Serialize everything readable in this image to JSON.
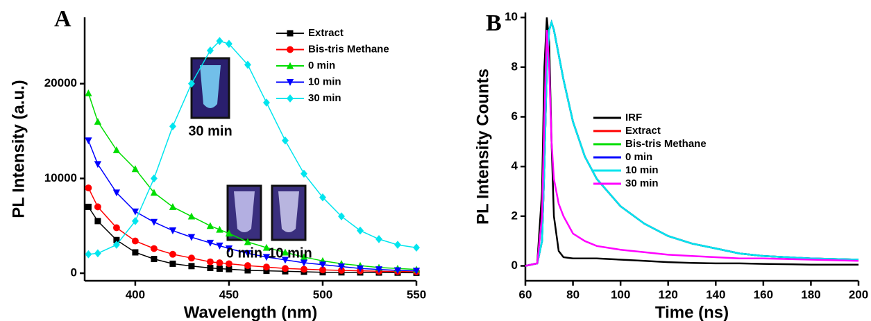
{
  "chart_data": [
    {
      "type": "line",
      "label": "A",
      "x_label": "Wavelength (nm)",
      "y_label": "PL Intensity (a.u.)",
      "x": [
        375,
        380,
        390,
        400,
        410,
        420,
        430,
        440,
        445,
        450,
        460,
        470,
        480,
        490,
        500,
        510,
        520,
        530,
        540,
        550
      ],
      "series": [
        {
          "name": "Extract",
          "color": "#000000",
          "marker": "square",
          "values": [
            7000,
            5500,
            3500,
            2200,
            1500,
            1000,
            750,
            550,
            480,
            420,
            300,
            250,
            200,
            150,
            100,
            90,
            80,
            70,
            60,
            50
          ]
        },
        {
          "name": "Bis-tris Methane",
          "color": "#ff0000",
          "marker": "circle",
          "values": [
            9000,
            7000,
            4800,
            3400,
            2600,
            2000,
            1600,
            1200,
            1100,
            1000,
            800,
            650,
            500,
            420,
            350,
            300,
            250,
            200,
            180,
            150
          ]
        },
        {
          "name": "0 min",
          "color": "#00dd00",
          "marker": "triangle",
          "values": [
            19000,
            16000,
            13000,
            11000,
            8500,
            7000,
            6000,
            5000,
            4600,
            4200,
            3300,
            2700,
            2200,
            1700,
            1300,
            1000,
            800,
            600,
            500,
            400
          ]
        },
        {
          "name": "10 min",
          "color": "#0000ff",
          "marker": "triangle-down",
          "values": [
            14000,
            11500,
            8500,
            6500,
            5400,
            4500,
            3800,
            3200,
            2900,
            2600,
            2100,
            1700,
            1400,
            1100,
            900,
            700,
            500,
            400,
            300,
            250
          ]
        },
        {
          "name": "30 min",
          "color": "#00e5ee",
          "marker": "diamond",
          "values": [
            2000,
            2100,
            3000,
            5500,
            10000,
            15500,
            20000,
            23500,
            24500,
            24200,
            22000,
            18000,
            14000,
            10500,
            8000,
            6000,
            4500,
            3600,
            3000,
            2700
          ]
        }
      ],
      "xlim": [
        373,
        550
      ],
      "xticks": [
        400,
        450,
        500,
        550
      ],
      "ylim": [
        -800,
        27000
      ],
      "yticks": [
        0,
        10000,
        20000
      ],
      "annotations": [
        "30 min",
        "0 min",
        "10 min"
      ]
    },
    {
      "type": "line",
      "label": "B",
      "x_label": "Time (ns)",
      "y_label": "PL Intensity Counts",
      "x": [
        60,
        65,
        67,
        68,
        69,
        70,
        71,
        72,
        74,
        76,
        80,
        85,
        90,
        100,
        110,
        120,
        130,
        140,
        150,
        160,
        180,
        200
      ],
      "series": [
        {
          "name": "IRF",
          "color": "#000000",
          "values": [
            0,
            0.1,
            3,
            8,
            10,
            9,
            5,
            2,
            0.6,
            0.35,
            0.3,
            0.3,
            0.3,
            0.25,
            0.2,
            0.15,
            0.12,
            0.1,
            0.1,
            0.08,
            0.05,
            0.05
          ]
        },
        {
          "name": "Extract",
          "color": "#ff0000",
          "values": [
            0,
            0.1,
            1,
            4,
            8,
            9.5,
            9.8,
            9.5,
            8.5,
            7.5,
            5.8,
            4.4,
            3.5,
            2.4,
            1.7,
            1.2,
            0.9,
            0.7,
            0.5,
            0.4,
            0.3,
            0.25
          ]
        },
        {
          "name": "Bis-tris Methane",
          "color": "#00dd00",
          "values": [
            0,
            0.1,
            1,
            4,
            8,
            9.5,
            9.8,
            9.5,
            8.5,
            7.5,
            5.8,
            4.4,
            3.5,
            2.4,
            1.7,
            1.2,
            0.9,
            0.7,
            0.5,
            0.4,
            0.3,
            0.25
          ]
        },
        {
          "name": "0 min",
          "color": "#0000ff",
          "values": [
            0,
            0.1,
            1,
            4,
            8,
            9.5,
            9.8,
            9.5,
            8.5,
            7.5,
            5.8,
            4.4,
            3.5,
            2.4,
            1.7,
            1.2,
            0.9,
            0.7,
            0.5,
            0.4,
            0.3,
            0.25
          ]
        },
        {
          "name": "10 min",
          "color": "#00e5ee",
          "values": [
            0,
            0.1,
            1,
            4,
            8,
            9.5,
            9.8,
            9.5,
            8.5,
            7.5,
            5.8,
            4.4,
            3.5,
            2.4,
            1.7,
            1.2,
            0.9,
            0.7,
            0.5,
            0.4,
            0.3,
            0.25
          ]
        },
        {
          "name": "30 min",
          "color": "#ff00ff",
          "values": [
            0,
            0.1,
            2,
            6,
            9.5,
            8,
            5,
            3.5,
            2.5,
            2,
            1.3,
            1,
            0.8,
            0.65,
            0.55,
            0.45,
            0.4,
            0.35,
            0.3,
            0.3,
            0.25,
            0.2
          ]
        }
      ],
      "xlim": [
        60,
        200
      ],
      "xticks": [
        60,
        80,
        100,
        120,
        140,
        160,
        180,
        200
      ],
      "ylim": [
        -0.6,
        10.2
      ],
      "yticks": [
        0,
        2,
        4,
        6,
        8,
        10
      ]
    }
  ]
}
